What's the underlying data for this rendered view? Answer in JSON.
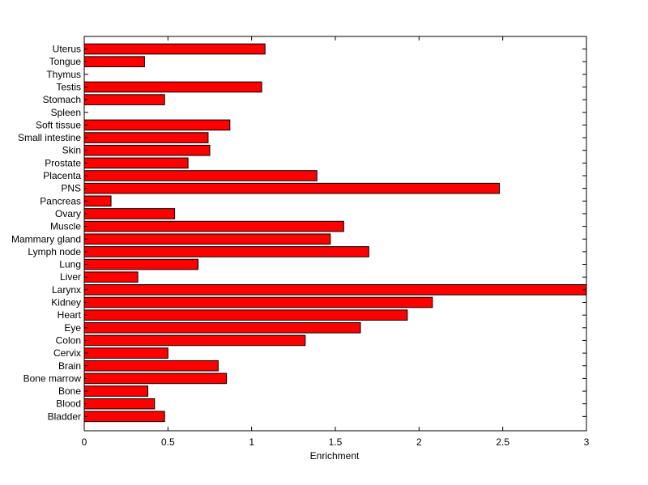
{
  "chart_data": {
    "type": "bar",
    "orientation": "horizontal",
    "categories": [
      "Uterus",
      "Tongue",
      "Thymus",
      "Testis",
      "Stomach",
      "Spleen",
      "Soft tissue",
      "Small intestine",
      "Skin",
      "Prostate",
      "Placenta",
      "PNS",
      "Pancreas",
      "Ovary",
      "Muscle",
      "Mammary gland",
      "Lymph node",
      "Lung",
      "Liver",
      "Larynx",
      "Kidney",
      "Heart",
      "Eye",
      "Colon",
      "Cervix",
      "Brain",
      "Bone marrow",
      "Bone",
      "Blood",
      "Bladder"
    ],
    "values": [
      1.08,
      0.36,
      0,
      1.06,
      0.48,
      0,
      0.87,
      0.74,
      0.75,
      0.62,
      1.39,
      2.48,
      0.16,
      0.54,
      1.55,
      1.47,
      1.7,
      0.68,
      0.32,
      3.0,
      2.08,
      1.93,
      1.65,
      1.32,
      0.5,
      0.8,
      0.85,
      0.38,
      0.42,
      0.48
    ],
    "xlabel": "Enrichment",
    "ylabel": "",
    "title": "",
    "xlim": [
      0,
      3
    ],
    "xticks": [
      "0",
      "0.5",
      "1",
      "1.5",
      "2",
      "2.5",
      "3"
    ],
    "grid": false,
    "bar_color": "#ff0000",
    "edge_color": "#000000"
  }
}
